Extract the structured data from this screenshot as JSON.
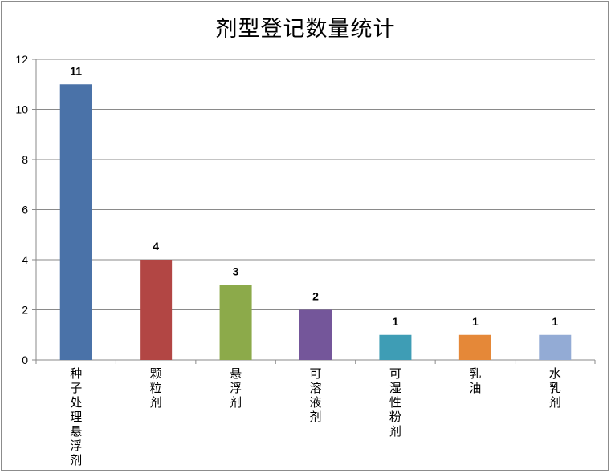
{
  "chart_data": {
    "type": "bar",
    "title": "剂型登记数量统计",
    "xlabel": "",
    "ylabel": "",
    "categories": [
      "种子处理悬浮剂",
      "颗粒剂",
      "悬浮剂",
      "可溶液剂",
      "可湿性粉剂",
      "乳油",
      "水乳剂"
    ],
    "values": [
      11,
      4,
      3,
      2,
      1,
      1,
      1
    ],
    "data_labels": [
      "11",
      "4",
      "3",
      "2",
      "1",
      "1",
      "1"
    ],
    "bar_colors": [
      "#4a72a8",
      "#b24644",
      "#8caa4a",
      "#74569a",
      "#3e9db5",
      "#e58838",
      "#93abd5"
    ],
    "ylim": [
      0,
      12
    ],
    "yticks": [
      "0",
      "2",
      "4",
      "6",
      "8",
      "10",
      "12"
    ],
    "grid": true,
    "legend": "none"
  }
}
